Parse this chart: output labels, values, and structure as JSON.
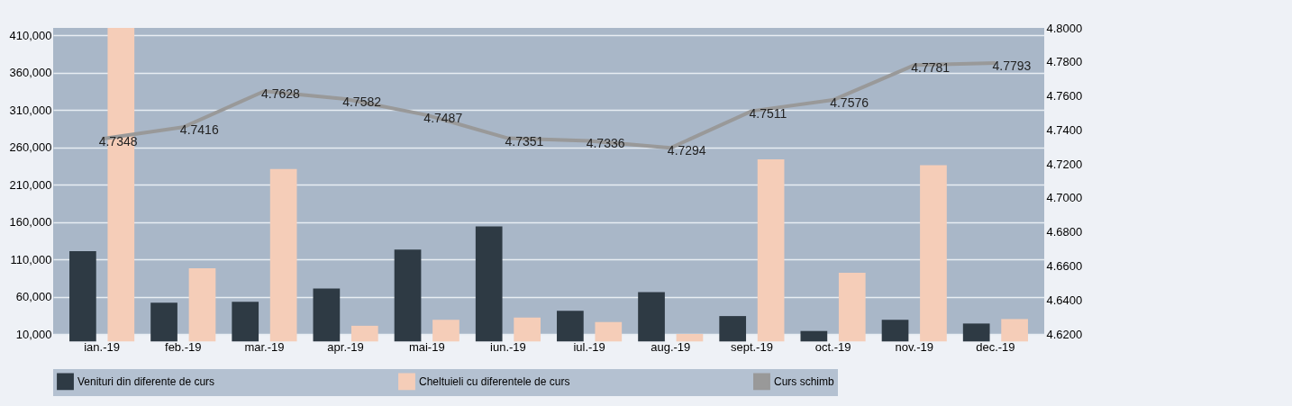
{
  "chart_data": {
    "type": "bar",
    "categories": [
      "ian.-19",
      "feb.-19",
      "mar.-19",
      "apr.-19",
      "mai-19",
      "iun.-19",
      "iul.-19",
      "aug.-19",
      "sept.-19",
      "oct.-19",
      "nov.-19",
      "dec.-19"
    ],
    "series": [
      {
        "name": "Venituri din diferente de curs",
        "color": "#2e3a44",
        "values": [
          121000,
          52000,
          53000,
          71000,
          123000,
          154000,
          41000,
          66000,
          34000,
          14000,
          29000,
          24000
        ]
      },
      {
        "name": "Cheltuieli cu diferentele de curs",
        "color": "#f5cdb8",
        "values": [
          420000,
          98000,
          231000,
          21000,
          29000,
          32000,
          26000,
          10000,
          244000,
          92000,
          236000,
          30000
        ]
      },
      {
        "name": "Curs schimb",
        "type": "line",
        "axis": "y2",
        "color": "#999999",
        "values": [
          4.7348,
          4.7416,
          4.7628,
          4.7582,
          4.7487,
          4.7351,
          4.7336,
          4.7294,
          4.7511,
          4.7576,
          4.7781,
          4.7793
        ],
        "value_labels": [
          "4.7348",
          "4.7416",
          "4.7628",
          "4.7582",
          "4.7487",
          "4.7351",
          "4.7336",
          "4.7294",
          "4.7511",
          "4.7576",
          "4.7781",
          "4.7793"
        ]
      }
    ],
    "ylim": [
      10000,
      420000
    ],
    "yticks": [
      {
        "value": 10000,
        "label": "10,000"
      },
      {
        "value": 60000,
        "label": "60,000"
      },
      {
        "value": 110000,
        "label": "110,000"
      },
      {
        "value": 160000,
        "label": "160,000"
      },
      {
        "value": 210000,
        "label": "210,000"
      },
      {
        "value": 260000,
        "label": "260,000"
      },
      {
        "value": 310000,
        "label": "310,000"
      },
      {
        "value": 360000,
        "label": "360,000"
      },
      {
        "value": 410000,
        "label": "410,000"
      }
    ],
    "y2lim": [
      4.62,
      4.8
    ],
    "y2ticks": [
      {
        "value": 4.62,
        "label": "4.6200"
      },
      {
        "value": 4.64,
        "label": "4.6400"
      },
      {
        "value": 4.66,
        "label": "4.6600"
      },
      {
        "value": 4.68,
        "label": "4.6800"
      },
      {
        "value": 4.7,
        "label": "4.7000"
      },
      {
        "value": 4.72,
        "label": "4.7200"
      },
      {
        "value": 4.74,
        "label": "4.7400"
      },
      {
        "value": 4.76,
        "label": "4.7600"
      },
      {
        "value": 4.78,
        "label": "4.7800"
      },
      {
        "value": 4.8,
        "label": "4.8000"
      }
    ],
    "grid": "y",
    "legend": "bottom"
  }
}
